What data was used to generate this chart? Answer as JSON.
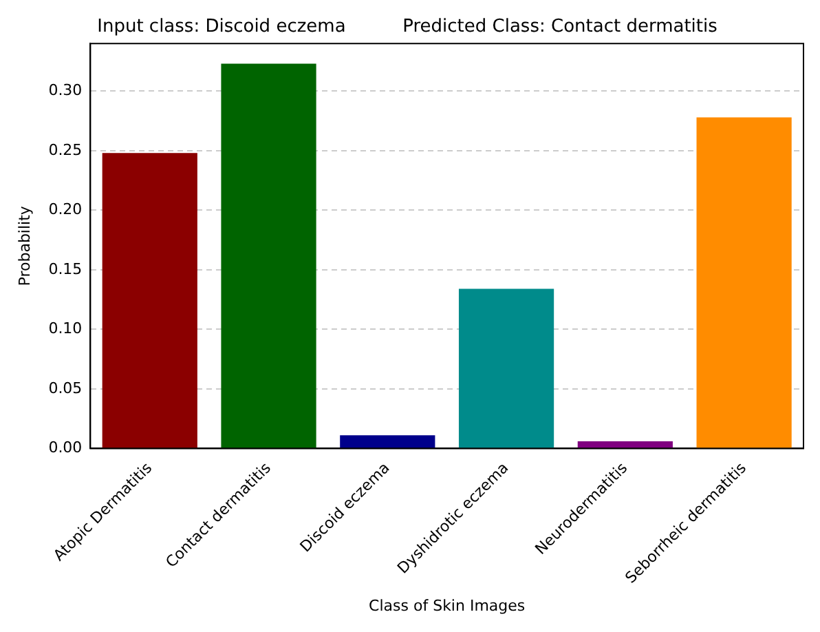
{
  "chart_data": {
    "type": "bar",
    "title": "Input class: Discoid eczema          Predicted Class: Contact dermatitis",
    "xlabel": "Class of Skin Images",
    "ylabel": "Probability",
    "categories": [
      "Atopic Dermatitis",
      "Contact dermatitis",
      "Discoid eczema",
      "Dyshidrotic eczema",
      "Neurodermatitis",
      "Seborrheic dermatitis"
    ],
    "values": [
      0.248,
      0.323,
      0.011,
      0.134,
      0.006,
      0.278
    ],
    "colors": [
      "#8b0000",
      "#006400",
      "#00008b",
      "#008b8b",
      "#800080",
      "#ff8c00"
    ],
    "ylim": [
      0,
      0.34
    ],
    "yticks": [
      {
        "value": 0,
        "label": "0.00"
      },
      {
        "value": 0.05,
        "label": "0.05"
      },
      {
        "value": 0.1,
        "label": "0.10"
      },
      {
        "value": 0.15,
        "label": "0.15"
      },
      {
        "value": 0.2,
        "label": "0.20"
      },
      {
        "value": 0.25,
        "label": "0.25"
      },
      {
        "value": 0.3,
        "label": "0.30"
      }
    ],
    "grid": "y",
    "legend": false
  }
}
